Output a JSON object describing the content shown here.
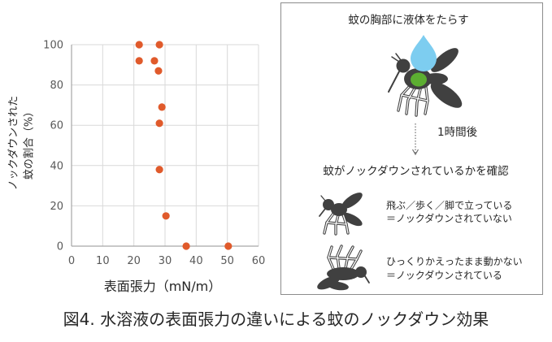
{
  "chart_data": {
    "type": "scatter",
    "xlabel": "表面張力（mN/m）",
    "ylabel": [
      "ノックダウンされた",
      "蚊の割合（%）"
    ],
    "xlim": [
      0,
      60
    ],
    "ylim": [
      0,
      100
    ],
    "x_ticks": [
      0,
      10,
      20,
      30,
      40,
      50,
      60
    ],
    "y_ticks": [
      0,
      20,
      40,
      60,
      80,
      100
    ],
    "grid": true,
    "series": [
      {
        "color": "#e05a2b",
        "x": [
          21.7,
          28.2,
          21.7,
          26.6,
          27.9,
          29.0,
          28.2,
          28.2,
          30.3,
          36.8,
          50.3
        ],
        "y": [
          100,
          100,
          92,
          92,
          87,
          69,
          61,
          38,
          15,
          0,
          0
        ]
      }
    ]
  },
  "diagram": {
    "step_apply": "蚊の胸部に液体をたらす",
    "wait": "1時間後",
    "step_check": "蚊がノックダウンされているかを確認",
    "standing": {
      "line1": "飛ぶ／歩く／脚で立っている",
      "line2": "＝ノックダウンされていない"
    },
    "flipped": {
      "line1": "ひっくりかえったまま動かない",
      "line2": "＝ノックダウンされている"
    },
    "icons": {
      "apply": "mosquito-droplet-icon",
      "arrow": "dotted-down-arrow-icon",
      "standing": "standing-mosquito-icon",
      "flipped": "flipped-mosquito-icon"
    }
  },
  "figure": {
    "caption": "図4. 水溶液の表面張力の違いによる蚊のノックダウン効果"
  },
  "colors": {
    "mosquito": "#404040",
    "droplet": "#7dcdf0",
    "thorax_mark": "#5cae31",
    "panel_border": "#8c8c8c"
  }
}
